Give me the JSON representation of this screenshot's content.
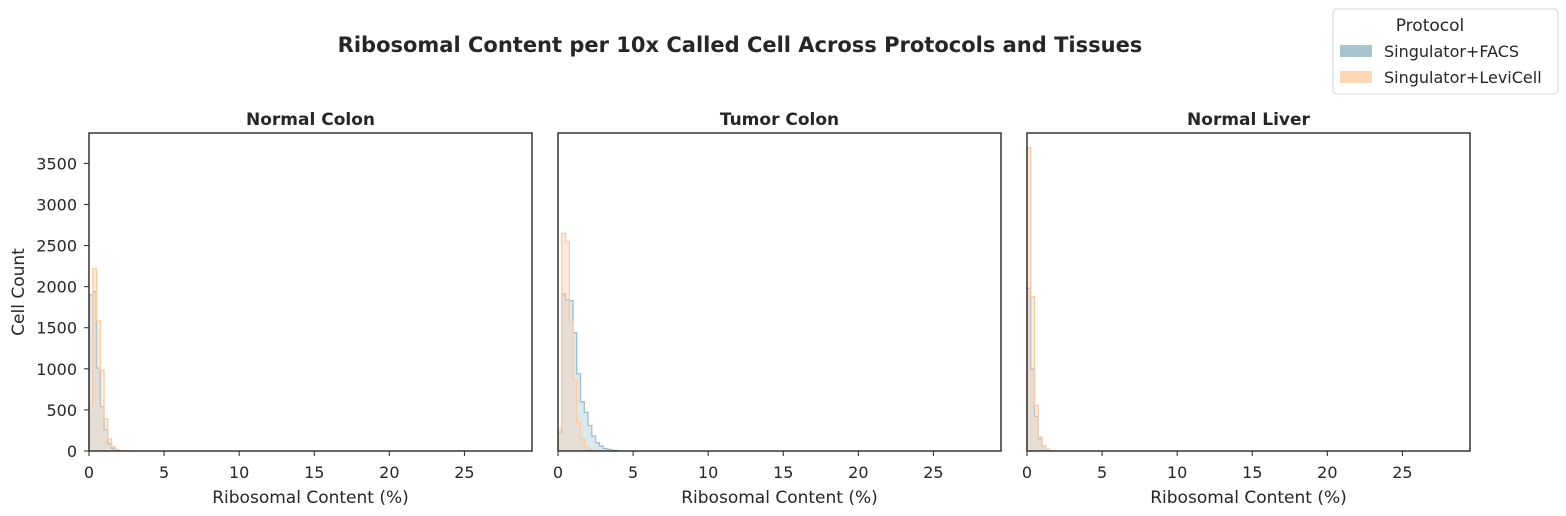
{
  "chart_data": {
    "type": "histogram",
    "title": "Ribosomal Content per 10x Called Cell Across Protocols and Tissues",
    "ylabel": "Cell Count",
    "xlabel": "Ribosomal Content (%)",
    "xlim": [
      0,
      29.5
    ],
    "ylim": [
      0,
      3870
    ],
    "xticks": [
      "0",
      "5",
      "10",
      "15",
      "20",
      "25"
    ],
    "yticks": [
      "0",
      "500",
      "1000",
      "1500",
      "2000",
      "2500",
      "3000",
      "3500"
    ],
    "bin_width": 0.25,
    "grid": false,
    "legend": {
      "title": "Protocol",
      "placement": "top-right",
      "entries": [
        {
          "name": "Singulator+FACS",
          "color": "#a8c4cf"
        },
        {
          "name": "Singulator+LeviCell",
          "color": "#fed8b4"
        }
      ]
    },
    "panels": [
      {
        "title": "Normal Colon",
        "series": [
          {
            "name": "Singulator+FACS",
            "color": "#9fbccb",
            "bins_start": 0,
            "counts": [
              1900,
              1940,
              1010,
              540,
              260,
              90,
              30,
              10,
              5
            ]
          },
          {
            "name": "Singulator+LeviCell",
            "color": "#f7cba6",
            "bins_start": 0,
            "counts": [
              560,
              2220,
              1590,
              980,
              390,
              150,
              50,
              15,
              5
            ]
          }
        ]
      },
      {
        "title": "Tumor Colon",
        "series": [
          {
            "name": "Singulator+FACS",
            "color": "#9fbccb",
            "bins_start": 0,
            "counts": [
              230,
              1910,
              1840,
              1830,
              1440,
              940,
              600,
              470,
              310,
              180,
              100,
              60,
              30,
              20,
              10,
              5
            ]
          },
          {
            "name": "Singulator+LeviCell",
            "color": "#f7cba6",
            "bins_start": 0,
            "counts": [
              270,
              2650,
              2550,
              1580,
              860,
              350,
              140,
              50,
              20,
              10,
              5
            ]
          }
        ]
      },
      {
        "title": "Normal Liver",
        "series": [
          {
            "name": "Singulator+FACS",
            "color": "#9fbccb",
            "bins_start": 0,
            "counts": [
              1980,
              1000,
              420,
              150,
              60,
              20,
              5
            ]
          },
          {
            "name": "Singulator+LeviCell",
            "color": "#f7cba6",
            "bins_start": 0,
            "counts": [
              3690,
              1880,
              560,
              170,
              60,
              20,
              5
            ]
          }
        ]
      }
    ]
  }
}
